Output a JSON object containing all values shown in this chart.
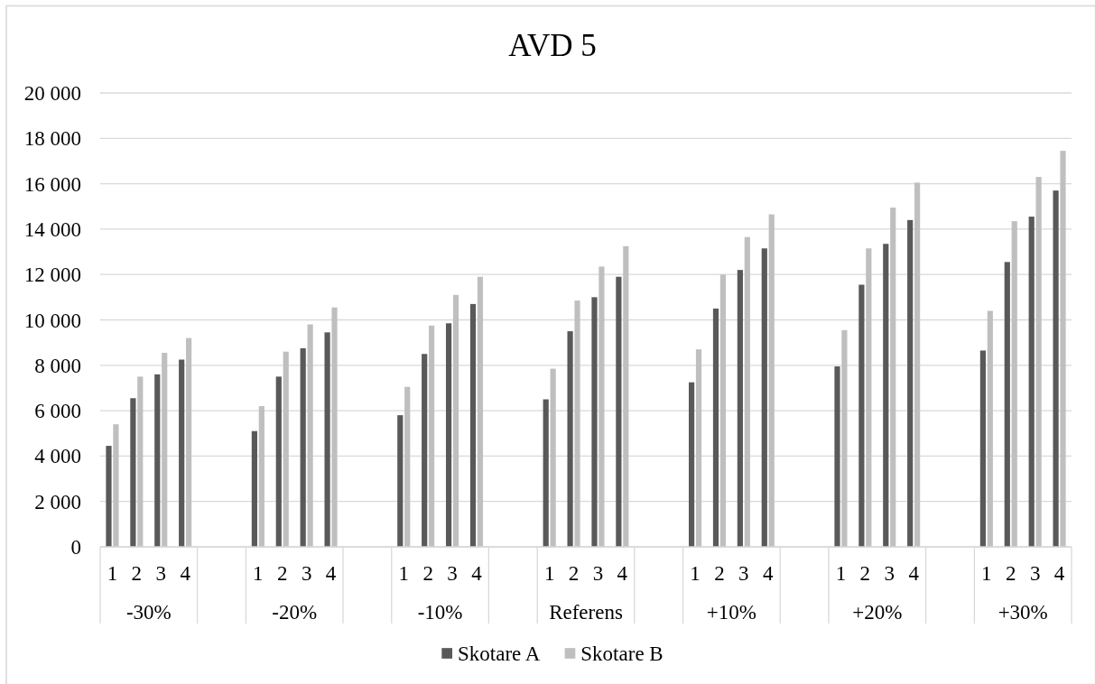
{
  "chart_data": {
    "type": "bar",
    "title": "AVD 5",
    "categories": [
      "1",
      "2",
      "3",
      "4",
      null,
      null,
      "1",
      "2",
      "3",
      "4",
      null,
      null,
      "1",
      "2",
      "3",
      "4",
      null,
      null,
      "1",
      "2",
      "3",
      "4",
      null,
      null,
      "1",
      "2",
      "3",
      "4",
      null,
      null,
      "1",
      "2",
      "3",
      "4",
      null,
      null,
      "1",
      "2",
      "3",
      "4"
    ],
    "series": [
      {
        "name": "Skotare A",
        "color": "#595959",
        "values": [
          4450,
          6550,
          7600,
          8250,
          null,
          null,
          5100,
          7500,
          8750,
          9450,
          null,
          null,
          5800,
          8500,
          9850,
          10700,
          null,
          null,
          6500,
          9500,
          11000,
          11900,
          null,
          null,
          7250,
          10500,
          12200,
          13150,
          null,
          null,
          7950,
          11550,
          13350,
          14400,
          null,
          null,
          8650,
          12550,
          14550,
          15700
        ]
      },
      {
        "name": "Skotare B",
        "color": "#bfbfbf",
        "values": [
          5400,
          7500,
          8550,
          9200,
          null,
          null,
          6200,
          8600,
          9800,
          10550,
          null,
          null,
          7050,
          9750,
          11100,
          11900,
          null,
          null,
          7850,
          10850,
          12350,
          13250,
          null,
          null,
          8700,
          12000,
          13650,
          14650,
          null,
          null,
          9550,
          13150,
          14950,
          16050,
          null,
          null,
          10400,
          14350,
          16300,
          17450
        ]
      }
    ],
    "ylim": [
      0,
      20000
    ],
    "yticks": [
      0,
      {
        "value": 2000,
        "label": "2 000"
      },
      {
        "value": 4000,
        "label": "4 000"
      },
      {
        "value": 6000,
        "label": "6 000"
      },
      {
        "value": 8000,
        "label": "8 000"
      },
      {
        "value": 10000,
        "label": "10 000"
      },
      {
        "value": 12000,
        "label": "12 000"
      },
      {
        "value": 14000,
        "label": "14 000"
      },
      {
        "value": 16000,
        "label": "16 000"
      },
      {
        "value": 18000,
        "label": "18 000"
      },
      {
        "value": 20000,
        "label": "20 000"
      }
    ],
    "grid": "y",
    "legend": "bottom",
    "annotations": [
      "-30%",
      "-20%",
      "-10%",
      "Referens",
      "+10%",
      "+20%",
      "+30%"
    ]
  }
}
